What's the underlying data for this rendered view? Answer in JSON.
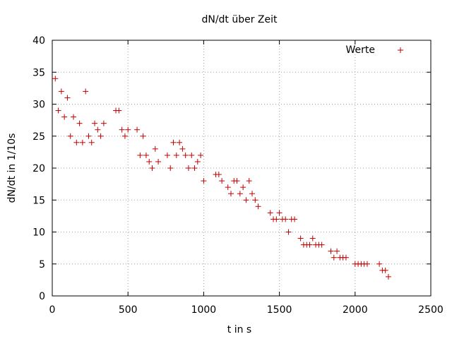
{
  "chart_data": {
    "type": "scatter",
    "title": "dN/dt über Zeit",
    "xlabel": "t in s",
    "ylabel": "dN/dt in 1/10s",
    "xlim": [
      0,
      2500
    ],
    "ylim": [
      0,
      40
    ],
    "xticks": [
      0,
      500,
      1000,
      1500,
      2000,
      2500
    ],
    "yticks": [
      0,
      5,
      10,
      15,
      20,
      25,
      30,
      35,
      40
    ],
    "grid": true,
    "legend_position": "top-right",
    "series": [
      {
        "name": "Werte",
        "color": "#c00000",
        "marker": "plus",
        "x": [
          20,
          40,
          60,
          80,
          100,
          120,
          140,
          160,
          180,
          200,
          220,
          240,
          260,
          280,
          300,
          320,
          340,
          420,
          440,
          460,
          480,
          500,
          560,
          580,
          600,
          620,
          640,
          660,
          680,
          700,
          760,
          780,
          800,
          820,
          840,
          860,
          880,
          900,
          920,
          940,
          960,
          980,
          1000,
          1080,
          1100,
          1120,
          1160,
          1180,
          1200,
          1220,
          1240,
          1260,
          1280,
          1300,
          1320,
          1340,
          1360,
          1440,
          1460,
          1480,
          1500,
          1520,
          1540,
          1560,
          1580,
          1600,
          1640,
          1660,
          1680,
          1700,
          1720,
          1740,
          1760,
          1780,
          1840,
          1860,
          1880,
          1900,
          1920,
          1940,
          2000,
          2020,
          2040,
          2060,
          2080,
          2160,
          2180,
          2200,
          2220
        ],
        "y": [
          34,
          29,
          32,
          28,
          31,
          25,
          28,
          24,
          27,
          24,
          32,
          25,
          24,
          27,
          26,
          25,
          27,
          29,
          29,
          26,
          25,
          26,
          26,
          22,
          25,
          22,
          21,
          20,
          23,
          21,
          22,
          20,
          24,
          22,
          24,
          23,
          22,
          20,
          22,
          20,
          21,
          22,
          18,
          19,
          19,
          18,
          17,
          16,
          18,
          18,
          16,
          17,
          15,
          18,
          16,
          15,
          14,
          13,
          12,
          12,
          13,
          12,
          12,
          10,
          12,
          12,
          9,
          8,
          8,
          8,
          9,
          8,
          8,
          8,
          7,
          6,
          7,
          6,
          6,
          6,
          5,
          5,
          5,
          5,
          5,
          5,
          4,
          4,
          3
        ]
      }
    ]
  }
}
